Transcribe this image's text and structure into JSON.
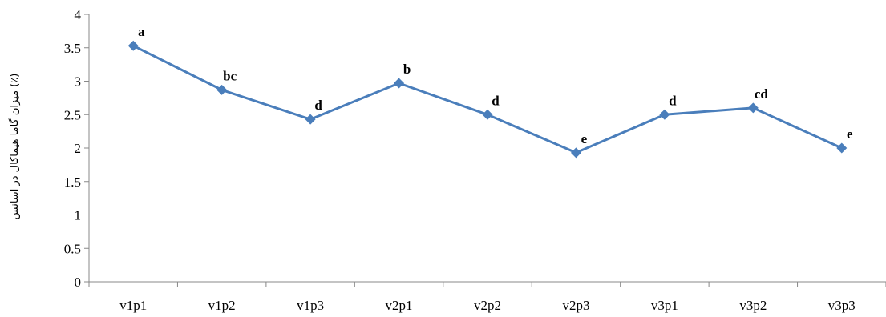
{
  "chart_data": {
    "type": "line",
    "categories": [
      "v1p1",
      "v1p2",
      "v1p3",
      "v2p1",
      "v2p2",
      "v2p3",
      "v3p1",
      "v3p2",
      "v3p3"
    ],
    "values": [
      3.53,
      2.87,
      2.43,
      2.97,
      2.5,
      1.93,
      2.5,
      2.6,
      2.0
    ],
    "data_labels": [
      "a",
      "bc",
      "d",
      "b",
      "d",
      "e",
      "d",
      "cd",
      "e"
    ],
    "ylabel": "میزان گاما هیماکال در اسانس (٪)",
    "yticks": [
      "0",
      "0.5",
      "1",
      "1.5",
      "2",
      "2.5",
      "3",
      "3.5",
      "4"
    ],
    "ylim": [
      0,
      4
    ],
    "grid": false,
    "legend": "none",
    "series_color": "#4a7ebb"
  }
}
